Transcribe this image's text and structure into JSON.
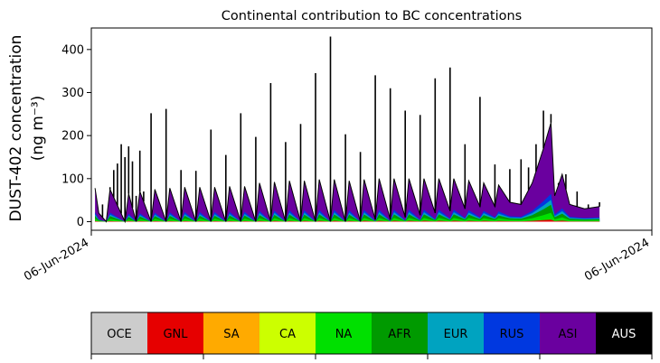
{
  "chart_data": {
    "type": "area",
    "title": "Continental contribution to BC concentrations",
    "ylabel_line1": "DUST-402 concentration",
    "ylabel_line2": "(ng m⁻³)",
    "xlabel": "",
    "x_tick_labels": [
      "06-Jun-2024",
      "06-Jun-2024"
    ],
    "y_ticks": [
      0,
      100,
      200,
      300,
      400
    ],
    "ylim": [
      -20,
      450
    ],
    "grid": false,
    "total_spikes": [
      [
        1,
        78
      ],
      [
        3,
        40
      ],
      [
        5,
        80
      ],
      [
        6,
        120
      ],
      [
        7,
        135
      ],
      [
        8,
        180
      ],
      [
        9,
        150
      ],
      [
        10,
        175
      ],
      [
        11,
        140
      ],
      [
        12,
        60
      ],
      [
        13,
        165
      ],
      [
        14,
        70
      ],
      [
        16,
        252
      ],
      [
        20,
        262
      ],
      [
        24,
        120
      ],
      [
        28,
        118
      ],
      [
        32,
        214
      ],
      [
        36,
        155
      ],
      [
        40,
        252
      ],
      [
        44,
        197
      ],
      [
        48,
        322
      ],
      [
        52,
        185
      ],
      [
        56,
        227
      ],
      [
        60,
        345
      ],
      [
        64,
        430
      ],
      [
        68,
        203
      ],
      [
        72,
        162
      ],
      [
        76,
        340
      ],
      [
        80,
        310
      ],
      [
        84,
        258
      ],
      [
        88,
        248
      ],
      [
        92,
        333
      ],
      [
        96,
        358
      ],
      [
        100,
        180
      ],
      [
        104,
        290
      ],
      [
        108,
        133
      ],
      [
        112,
        122
      ],
      [
        115,
        145
      ],
      [
        117,
        126
      ],
      [
        119,
        180
      ],
      [
        121,
        258
      ],
      [
        123,
        250
      ],
      [
        125,
        90
      ],
      [
        127,
        110
      ],
      [
        130,
        70
      ],
      [
        133,
        40
      ],
      [
        136,
        45
      ]
    ],
    "asi_envelope": [
      [
        1,
        78
      ],
      [
        2,
        20
      ],
      [
        4,
        0
      ],
      [
        5,
        75
      ],
      [
        9,
        0
      ],
      [
        10,
        65
      ],
      [
        12,
        0
      ],
      [
        13,
        70
      ],
      [
        16,
        0
      ],
      [
        17,
        75
      ],
      [
        20,
        0
      ],
      [
        21,
        78
      ],
      [
        24,
        0
      ],
      [
        25,
        80
      ],
      [
        28,
        0
      ],
      [
        29,
        80
      ],
      [
        32,
        0
      ],
      [
        33,
        80
      ],
      [
        36,
        0
      ],
      [
        37,
        82
      ],
      [
        40,
        0
      ],
      [
        41,
        82
      ],
      [
        44,
        0
      ],
      [
        45,
        90
      ],
      [
        48,
        0
      ],
      [
        49,
        92
      ],
      [
        52,
        0
      ],
      [
        53,
        95
      ],
      [
        56,
        0
      ],
      [
        57,
        95
      ],
      [
        60,
        0
      ],
      [
        61,
        98
      ],
      [
        64,
        0
      ],
      [
        65,
        98
      ],
      [
        68,
        0
      ],
      [
        69,
        95
      ],
      [
        72,
        0
      ],
      [
        73,
        98
      ],
      [
        76,
        5
      ],
      [
        77,
        100
      ],
      [
        80,
        5
      ],
      [
        81,
        100
      ],
      [
        84,
        10
      ],
      [
        85,
        100
      ],
      [
        88,
        15
      ],
      [
        89,
        100
      ],
      [
        92,
        20
      ],
      [
        93,
        100
      ],
      [
        96,
        25
      ],
      [
        97,
        100
      ],
      [
        100,
        30
      ],
      [
        101,
        95
      ],
      [
        104,
        35
      ],
      [
        105,
        90
      ],
      [
        108,
        35
      ],
      [
        109,
        85
      ],
      [
        112,
        45
      ],
      [
        115,
        40
      ],
      [
        118,
        90
      ],
      [
        121,
        170
      ],
      [
        123,
        230
      ],
      [
        124,
        60
      ],
      [
        126,
        110
      ],
      [
        128,
        40
      ],
      [
        132,
        30
      ],
      [
        136,
        35
      ]
    ],
    "legend": [
      {
        "name": "OCE",
        "color": "#cccccc",
        "text_color": "#000000"
      },
      {
        "name": "GNL",
        "color": "#e60000",
        "text_color": "#000000"
      },
      {
        "name": "SA",
        "color": "#ffaa00",
        "text_color": "#000000"
      },
      {
        "name": "CA",
        "color": "#ccff00",
        "text_color": "#000000"
      },
      {
        "name": "NA",
        "color": "#00e000",
        "text_color": "#000000"
      },
      {
        "name": "AFR",
        "color": "#009a00",
        "text_color": "#000000"
      },
      {
        "name": "EUR",
        "color": "#00a3c0",
        "text_color": "#000000"
      },
      {
        "name": "RUS",
        "color": "#0038e0",
        "text_color": "#000000"
      },
      {
        "name": "ASI",
        "color": "#6a009f",
        "text_color": "#000000"
      },
      {
        "name": "AUS",
        "color": "#000000",
        "text_color": "#ffffff"
      }
    ],
    "colors": {
      "ASI": "#6a009f",
      "NA": "#00e000",
      "AFR": "#009a00",
      "GNL": "#e60000",
      "EUR": "#00a3c0",
      "RUS": "#0038e0",
      "total": "#000000"
    }
  }
}
